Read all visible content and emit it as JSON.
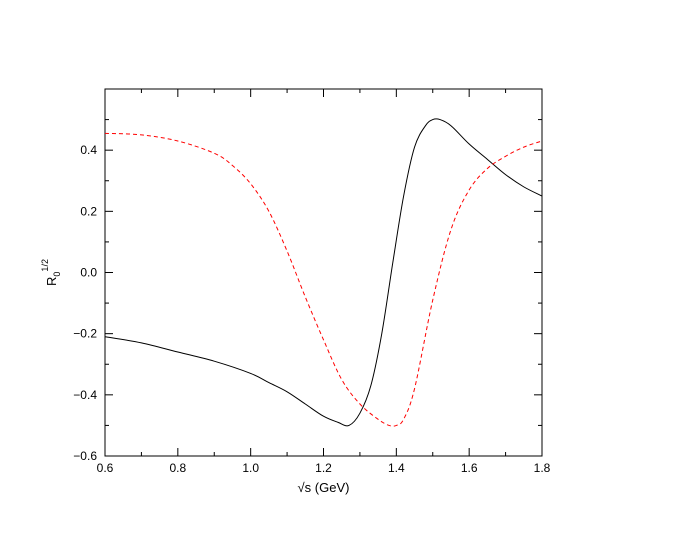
{
  "chart_data": {
    "type": "line",
    "title": "",
    "xlabel": "√s (GeV)",
    "ylabel": {
      "base": "R",
      "sub": "0",
      "sup": "1/2"
    },
    "xlim": [
      0.6,
      1.8
    ],
    "ylim": [
      -0.6,
      0.6
    ],
    "xticks": [
      0.6,
      0.8,
      1.0,
      1.2,
      1.4,
      1.6,
      1.8
    ],
    "xtick_labels": [
      "0.6",
      "0.8",
      "1.0",
      "1.2",
      "1.4",
      "1.6",
      "1.8"
    ],
    "yticks": [
      -0.6,
      -0.4,
      -0.2,
      0.0,
      0.2,
      0.4
    ],
    "ytick_labels": [
      "−0.6",
      "−0.4",
      "−0.2",
      "0.0",
      "0.2",
      "0.4"
    ],
    "grid": false,
    "legend": "none",
    "series": [
      {
        "color": "#000000",
        "dash": "solid",
        "x": [
          0.6,
          0.7,
          0.8,
          0.9,
          1.0,
          1.05,
          1.1,
          1.15,
          1.2,
          1.24,
          1.27,
          1.3,
          1.33,
          1.36,
          1.39,
          1.42,
          1.45,
          1.48,
          1.5,
          1.52,
          1.55,
          1.6,
          1.65,
          1.7,
          1.75,
          1.8
        ],
        "y": [
          -0.21,
          -0.23,
          -0.26,
          -0.29,
          -0.33,
          -0.36,
          -0.39,
          -0.43,
          -0.47,
          -0.49,
          -0.5,
          -0.46,
          -0.37,
          -0.2,
          0.03,
          0.25,
          0.41,
          0.48,
          0.5,
          0.5,
          0.48,
          0.42,
          0.37,
          0.32,
          0.28,
          0.25
        ]
      },
      {
        "color": "#ff0000",
        "dash": "dashed",
        "x": [
          0.6,
          0.7,
          0.8,
          0.9,
          0.95,
          1.0,
          1.05,
          1.1,
          1.15,
          1.2,
          1.25,
          1.3,
          1.35,
          1.38,
          1.4,
          1.42,
          1.45,
          1.5,
          1.55,
          1.6,
          1.65,
          1.7,
          1.75,
          1.8
        ],
        "y": [
          0.455,
          0.45,
          0.43,
          0.39,
          0.35,
          0.29,
          0.2,
          0.07,
          -0.08,
          -0.22,
          -0.35,
          -0.43,
          -0.48,
          -0.5,
          -0.5,
          -0.48,
          -0.38,
          -0.09,
          0.14,
          0.27,
          0.34,
          0.38,
          0.41,
          0.43
        ]
      }
    ]
  }
}
